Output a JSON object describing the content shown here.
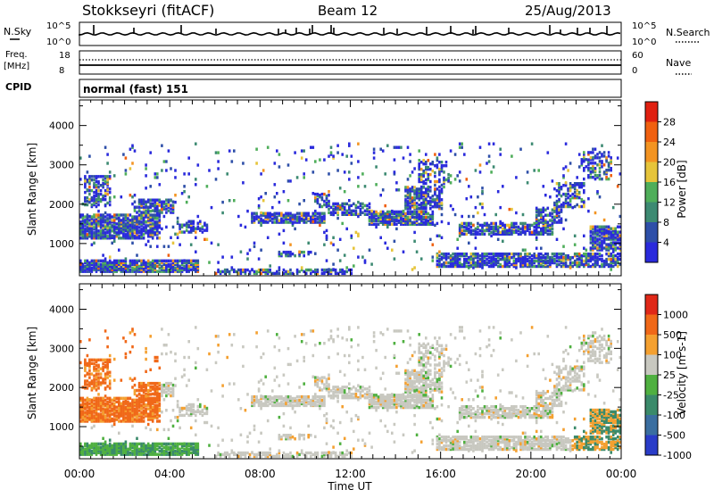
{
  "header": {
    "station": "Stokkseyri (fitACF)",
    "beam": "Beam 12",
    "date": "25/Aug/2013"
  },
  "noise_panel": {
    "left_label": "N.Sky",
    "right_label": "N.Search",
    "left_ticks": [
      "10^5",
      "10^0"
    ],
    "right_ticks": [
      "10^5",
      "10^0"
    ]
  },
  "freq_panel": {
    "label_line1": "Freq.",
    "label_line2": "[MHz]",
    "right_label": "Nave",
    "left_ticks": [
      "18",
      "8"
    ],
    "right_ticks": [
      "60",
      "0"
    ]
  },
  "cpid": {
    "label": "CPID",
    "value": "normal (fast) 151"
  },
  "chart_data": [
    {
      "type": "heatmap",
      "name": "power",
      "ylabel": "Slant Range [km]",
      "y_ticks": [
        "1000",
        "2000",
        "3000",
        "4000"
      ],
      "ylim": [
        180,
        4650
      ],
      "colorbar": {
        "label": "Power [dB]",
        "ticks": [
          "4",
          "8",
          "12",
          "16",
          "20",
          "24",
          "28"
        ],
        "colors": [
          "#2a2adc",
          "#2e4fa8",
          "#3d8a72",
          "#4fae5a",
          "#e6c43a",
          "#f39422",
          "#f06010",
          "#e02010"
        ]
      }
    },
    {
      "type": "heatmap",
      "name": "velocity",
      "ylabel": "Slant Range [km]",
      "xlabel": "Time UT",
      "x_ticks": [
        "00:00",
        "04:00",
        "08:00",
        "12:00",
        "16:00",
        "20:00",
        "00:00"
      ],
      "y_ticks": [
        "1000",
        "2000",
        "3000",
        "4000"
      ],
      "ylim": [
        180,
        4650
      ],
      "colorbar": {
        "label": "Velocity [m s-1]",
        "ticks": [
          "1000",
          "500",
          "100",
          "25",
          "-25",
          "-100",
          "-500",
          "-1000"
        ],
        "colors": [
          "#2a3cc8",
          "#3a6ea0",
          "#3a8a6a",
          "#4fb040",
          "#c8c8c0",
          "#f4a030",
          "#f06818",
          "#e02818"
        ]
      }
    }
  ]
}
